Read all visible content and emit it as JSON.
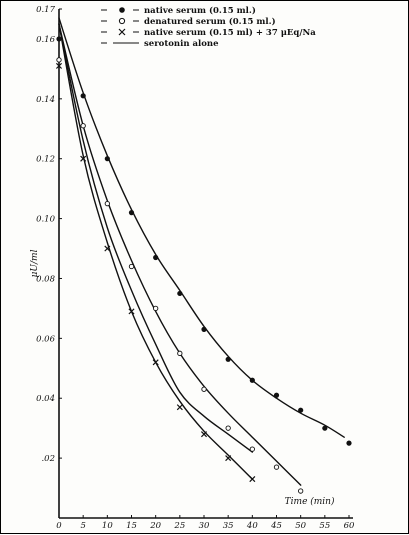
{
  "chart_data": {
    "type": "scatter",
    "xlabel": "Time (min)",
    "ylabel": "μU/ml",
    "xlim": [
      0,
      60
    ],
    "ylim": [
      0,
      0.17
    ],
    "x_ticks": [
      "0",
      "5",
      "10",
      "15",
      "20",
      "25",
      "30",
      "35",
      "40",
      "45",
      "50",
      "55",
      "60"
    ],
    "y_ticks": [
      ".02",
      "0.04",
      "0.06",
      "0.08",
      "0.10",
      "0.12",
      "0.14",
      "0.16",
      "0.17"
    ],
    "legend_placement": "top",
    "grid": false,
    "series": [
      {
        "name": "native serum (0.15 ml.)",
        "legend_symbol": "●",
        "marker": "filled-circle",
        "points": [
          [
            0,
            0.16
          ],
          [
            5,
            0.141
          ],
          [
            10,
            0.12
          ],
          [
            15,
            0.102
          ],
          [
            20,
            0.087
          ],
          [
            25,
            0.075
          ],
          [
            30,
            0.063
          ],
          [
            35,
            0.053
          ],
          [
            40,
            0.046
          ],
          [
            45,
            0.041
          ],
          [
            50,
            0.036
          ],
          [
            55,
            0.03
          ],
          [
            60,
            0.025
          ]
        ],
        "curve": [
          [
            0,
            0.167
          ],
          [
            5,
            0.142
          ],
          [
            10,
            0.121
          ],
          [
            15,
            0.103
          ],
          [
            20,
            0.088
          ],
          [
            25,
            0.076
          ],
          [
            30,
            0.064
          ],
          [
            35,
            0.054
          ],
          [
            40,
            0.046
          ],
          [
            45,
            0.04
          ],
          [
            50,
            0.035
          ],
          [
            55,
            0.031
          ],
          [
            59,
            0.027
          ]
        ]
      },
      {
        "name": "denatured serum (0.15 ml.)",
        "legend_symbol": "C",
        "marker": "open-circle",
        "points": [
          [
            0,
            0.153
          ],
          [
            5,
            0.131
          ],
          [
            10,
            0.105
          ],
          [
            15,
            0.084
          ],
          [
            20,
            0.07
          ],
          [
            25,
            0.055
          ],
          [
            30,
            0.043
          ],
          [
            35,
            0.03
          ],
          [
            40,
            0.023
          ],
          [
            45,
            0.017
          ],
          [
            50,
            0.009
          ]
        ],
        "curve": [
          [
            0,
            0.165
          ],
          [
            5,
            0.131
          ],
          [
            10,
            0.106
          ],
          [
            15,
            0.086
          ],
          [
            20,
            0.069
          ],
          [
            25,
            0.055
          ],
          [
            30,
            0.044
          ],
          [
            35,
            0.035
          ],
          [
            40,
            0.027
          ],
          [
            45,
            0.019
          ],
          [
            50,
            0.011
          ]
        ]
      },
      {
        "name": "native serum (0.15 ml) + 37 μEq/Na",
        "legend_symbol": "×",
        "marker": "cross",
        "points": [
          [
            0,
            0.151
          ],
          [
            5,
            0.12
          ],
          [
            10,
            0.09
          ],
          [
            15,
            0.069
          ],
          [
            20,
            0.052
          ],
          [
            25,
            0.037
          ],
          [
            30,
            0.028
          ],
          [
            35,
            0.02
          ],
          [
            40,
            0.013
          ]
        ],
        "curve": [
          [
            0,
            0.165
          ],
          [
            5,
            0.121
          ],
          [
            10,
            0.092
          ],
          [
            15,
            0.069
          ],
          [
            20,
            0.052
          ],
          [
            25,
            0.039
          ],
          [
            30,
            0.029
          ],
          [
            35,
            0.021
          ],
          [
            40,
            0.013
          ]
        ]
      },
      {
        "name": "serotonin alone",
        "legend_symbol": "—",
        "marker": "none",
        "points": [],
        "curve": [
          [
            0,
            0.165
          ],
          [
            5,
            0.126
          ],
          [
            10,
            0.097
          ],
          [
            15,
            0.076
          ],
          [
            20,
            0.058
          ],
          [
            25,
            0.042
          ],
          [
            30,
            0.034
          ],
          [
            35,
            0.028
          ],
          [
            40,
            0.022
          ]
        ]
      }
    ]
  }
}
